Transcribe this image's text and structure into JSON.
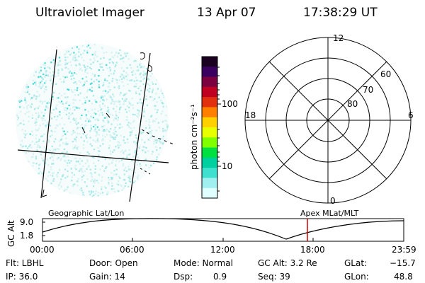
{
  "header": {
    "instrument": "Ultraviolet Imager",
    "date": "13 Apr 07",
    "time": "17:38:29 UT"
  },
  "colorbar": {
    "unit_label": "photon cm⁻²s⁻¹",
    "tick_labels": [
      "100",
      "10"
    ],
    "colors": [
      "#1a0020",
      "#3a0060",
      "#7a0040",
      "#c00020",
      "#e03010",
      "#ff8000",
      "#ffd000",
      "#e8ff00",
      "#80ff00",
      "#00e040",
      "#00d0a0",
      "#40e0d0",
      "#a0f0f0",
      "#e0ffff"
    ]
  },
  "polar_plot": {
    "mlt_labels": [
      "12",
      "18",
      "6",
      "0"
    ],
    "lat_labels": [
      "60",
      "70",
      "80"
    ]
  },
  "timeline": {
    "left_label": "Geographic Lat/Lon",
    "right_label": "Apex MLat/MLT",
    "y_axis_title": "GC Alt",
    "y_ticks": [
      "9.0",
      "1.8"
    ],
    "x_ticks": [
      "00:00",
      "06:00",
      "12:00",
      "18:00",
      "23:59"
    ]
  },
  "info": {
    "flt": "Flt: LBHL",
    "ip": "IP: 36.0",
    "door": "Door: Open",
    "gain": "Gain: 14",
    "mode": "Mode: Normal",
    "dsp_label": "Dsp:",
    "dsp_value": "0.9",
    "gc_alt": "GC Alt: 3.2 Re",
    "seq": "Seq: 39",
    "glat_label": "GLat:",
    "glat_value": "−15.7",
    "glon_label": "GLon:",
    "glon_value": "48.8"
  }
}
